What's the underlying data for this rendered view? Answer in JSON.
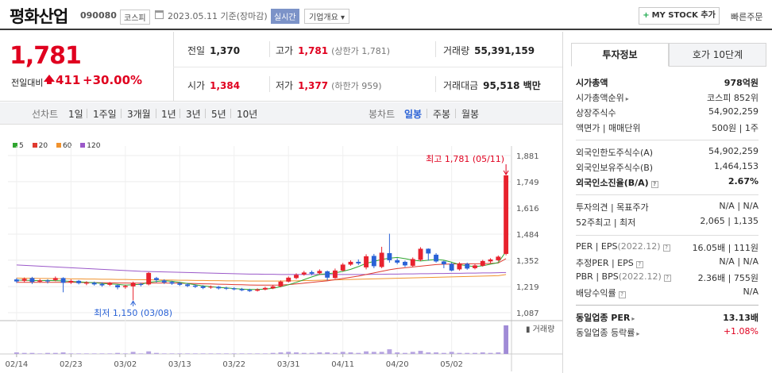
{
  "header": {
    "name": "평화산업",
    "code": "090080",
    "market": "코스피",
    "date": "2023.05.11 기준(장마감)",
    "realtime": "실시간",
    "overview": "기업개요",
    "overview_arrow": "▾",
    "mystock_plus": "+",
    "mystock": "MY STOCK 추가",
    "quick_order": "빠른주문"
  },
  "summary": {
    "price": "1,781",
    "prev_label": "전일대비",
    "change": "411",
    "change_pct": "+30.00%",
    "prev_close_label": "전일",
    "prev_close": "1,370",
    "high_label": "고가",
    "high": "1,781",
    "high_sub": "(상한가 1,781)",
    "volume_label": "거래량",
    "volume": "55,391,159",
    "open_label": "시가",
    "open": "1,384",
    "low_label": "저가",
    "low": "1,377",
    "low_sub": "(하한가 959)",
    "amount_label": "거래대금",
    "amount": "95,518 백만"
  },
  "toolbar": {
    "chart_type_label": "선차트",
    "periods": [
      "1일",
      "1주일",
      "3개월",
      "1년",
      "3년",
      "5년",
      "10년"
    ],
    "candle_label": "봉차트",
    "candles": [
      "일봉",
      "주봉",
      "월봉"
    ],
    "selected_candle": "일봉"
  },
  "legend": [
    {
      "label": "5",
      "color": "#2fa52f"
    },
    {
      "label": "20",
      "color": "#e03a2f"
    },
    {
      "label": "60",
      "color": "#f0922e"
    },
    {
      "label": "120",
      "color": "#9b59c9"
    }
  ],
  "chart_data": {
    "type": "candlestick",
    "y_ticks": [
      "1,881",
      "1,749",
      "1,616",
      "1,484",
      "1,352",
      "1,219",
      "1,087"
    ],
    "ylim": [
      1087,
      1881
    ],
    "x_ticks": [
      "02/14",
      "02/23",
      "03/02",
      "03/13",
      "03/22",
      "03/31",
      "04/11",
      "04/20",
      "05/02"
    ],
    "high_annotation": "최고 1,781 (05/11)",
    "low_annotation": "최저 1,150 (03/08)",
    "volume_label": "거래량",
    "candles": [
      {
        "o": 1255,
        "c": 1245,
        "h": 1262,
        "l": 1238
      },
      {
        "o": 1248,
        "c": 1258,
        "h": 1265,
        "l": 1240
      },
      {
        "o": 1262,
        "c": 1242,
        "h": 1268,
        "l": 1232
      },
      {
        "o": 1244,
        "c": 1250,
        "h": 1257,
        "l": 1238
      },
      {
        "o": 1250,
        "c": 1245,
        "h": 1256,
        "l": 1235
      },
      {
        "o": 1252,
        "c": 1262,
        "h": 1270,
        "l": 1246
      },
      {
        "o": 1262,
        "c": 1238,
        "h": 1266,
        "l": 1190
      },
      {
        "o": 1240,
        "c": 1248,
        "h": 1255,
        "l": 1232
      },
      {
        "o": 1248,
        "c": 1236,
        "h": 1252,
        "l": 1230
      },
      {
        "o": 1234,
        "c": 1240,
        "h": 1246,
        "l": 1226
      },
      {
        "o": 1238,
        "c": 1230,
        "h": 1244,
        "l": 1224
      },
      {
        "o": 1232,
        "c": 1225,
        "h": 1240,
        "l": 1218
      },
      {
        "o": 1228,
        "c": 1236,
        "h": 1242,
        "l": 1222
      },
      {
        "o": 1226,
        "c": 1215,
        "h": 1230,
        "l": 1205
      },
      {
        "o": 1216,
        "c": 1222,
        "h": 1228,
        "l": 1208
      },
      {
        "o": 1220,
        "c": 1238,
        "h": 1244,
        "l": 1150
      },
      {
        "o": 1232,
        "c": 1227,
        "h": 1238,
        "l": 1220
      },
      {
        "o": 1230,
        "c": 1288,
        "h": 1292,
        "l": 1225
      },
      {
        "o": 1262,
        "c": 1252,
        "h": 1268,
        "l": 1240
      },
      {
        "o": 1250,
        "c": 1240,
        "h": 1256,
        "l": 1232
      },
      {
        "o": 1242,
        "c": 1234,
        "h": 1248,
        "l": 1228
      },
      {
        "o": 1236,
        "c": 1228,
        "h": 1242,
        "l": 1222
      },
      {
        "o": 1230,
        "c": 1222,
        "h": 1236,
        "l": 1216
      },
      {
        "o": 1224,
        "c": 1218,
        "h": 1230,
        "l": 1212
      },
      {
        "o": 1220,
        "c": 1212,
        "h": 1226,
        "l": 1206
      },
      {
        "o": 1214,
        "c": 1218,
        "h": 1224,
        "l": 1208
      },
      {
        "o": 1218,
        "c": 1210,
        "h": 1222,
        "l": 1204
      },
      {
        "o": 1212,
        "c": 1208,
        "h": 1218,
        "l": 1202
      },
      {
        "o": 1210,
        "c": 1205,
        "h": 1216,
        "l": 1200
      },
      {
        "o": 1206,
        "c": 1200,
        "h": 1212,
        "l": 1196
      },
      {
        "o": 1202,
        "c": 1196,
        "h": 1208,
        "l": 1192
      },
      {
        "o": 1198,
        "c": 1204,
        "h": 1210,
        "l": 1194
      },
      {
        "o": 1204,
        "c": 1212,
        "h": 1218,
        "l": 1200
      },
      {
        "o": 1210,
        "c": 1220,
        "h": 1226,
        "l": 1206
      },
      {
        "o": 1220,
        "c": 1244,
        "h": 1250,
        "l": 1216
      },
      {
        "o": 1244,
        "c": 1264,
        "h": 1270,
        "l": 1240
      },
      {
        "o": 1262,
        "c": 1278,
        "h": 1286,
        "l": 1256
      },
      {
        "o": 1280,
        "c": 1290,
        "h": 1298,
        "l": 1274
      },
      {
        "o": 1292,
        "c": 1284,
        "h": 1300,
        "l": 1276
      },
      {
        "o": 1286,
        "c": 1298,
        "h": 1306,
        "l": 1280
      },
      {
        "o": 1296,
        "c": 1264,
        "h": 1300,
        "l": 1250
      },
      {
        "o": 1262,
        "c": 1300,
        "h": 1310,
        "l": 1258
      },
      {
        "o": 1300,
        "c": 1330,
        "h": 1338,
        "l": 1295
      },
      {
        "o": 1330,
        "c": 1344,
        "h": 1352,
        "l": 1324
      },
      {
        "o": 1344,
        "c": 1336,
        "h": 1356,
        "l": 1328
      },
      {
        "o": 1316,
        "c": 1372,
        "h": 1382,
        "l": 1306
      },
      {
        "o": 1374,
        "c": 1322,
        "h": 1384,
        "l": 1312
      },
      {
        "o": 1318,
        "c": 1390,
        "h": 1420,
        "l": 1312
      },
      {
        "o": 1388,
        "c": 1352,
        "h": 1486,
        "l": 1340
      },
      {
        "o": 1352,
        "c": 1340,
        "h": 1362,
        "l": 1332
      },
      {
        "o": 1344,
        "c": 1326,
        "h": 1350,
        "l": 1318
      },
      {
        "o": 1324,
        "c": 1358,
        "h": 1366,
        "l": 1318
      },
      {
        "o": 1354,
        "c": 1410,
        "h": 1418,
        "l": 1348
      },
      {
        "o": 1410,
        "c": 1386,
        "h": 1412,
        "l": 1350
      },
      {
        "o": 1380,
        "c": 1346,
        "h": 1388,
        "l": 1340
      },
      {
        "o": 1346,
        "c": 1332,
        "h": 1350,
        "l": 1312
      },
      {
        "o": 1334,
        "c": 1300,
        "h": 1340,
        "l": 1296
      },
      {
        "o": 1306,
        "c": 1336,
        "h": 1342,
        "l": 1300
      },
      {
        "o": 1334,
        "c": 1310,
        "h": 1340,
        "l": 1304
      },
      {
        "o": 1312,
        "c": 1326,
        "h": 1332,
        "l": 1306
      },
      {
        "o": 1324,
        "c": 1348,
        "h": 1354,
        "l": 1320
      },
      {
        "o": 1346,
        "c": 1356,
        "h": 1362,
        "l": 1338
      },
      {
        "o": 1352,
        "c": 1370,
        "h": 1376,
        "l": 1346
      },
      {
        "o": 1384,
        "c": 1781,
        "h": 1781,
        "l": 1377
      }
    ],
    "ma5": [
      1252,
      1251,
      1250,
      1249,
      1250,
      1249,
      1248,
      1245,
      1243,
      1240,
      1238,
      1235,
      1232,
      1230,
      1226,
      1228,
      1230,
      1240,
      1245,
      1248,
      1246,
      1240,
      1234,
      1228,
      1222,
      1218,
      1214,
      1212,
      1209,
      1206,
      1204,
      1204,
      1206,
      1210,
      1218,
      1228,
      1240,
      1254,
      1268,
      1280,
      1284,
      1288,
      1296,
      1306,
      1320,
      1336,
      1346,
      1356,
      1362,
      1366,
      1360,
      1352,
      1348,
      1352,
      1356,
      1352,
      1342,
      1330,
      1324,
      1320,
      1324,
      1332,
      1340,
      1396
    ],
    "ma20": [
      1240,
      1240,
      1240,
      1240,
      1240,
      1240,
      1240,
      1240,
      1240,
      1239,
      1239,
      1238,
      1238,
      1237,
      1237,
      1236,
      1236,
      1236,
      1237,
      1237,
      1236,
      1236,
      1235,
      1234,
      1233,
      1232,
      1231,
      1230,
      1229,
      1228,
      1227,
      1226,
      1226,
      1226,
      1227,
      1229,
      1232,
      1236,
      1240,
      1244,
      1248,
      1254,
      1260,
      1266,
      1272,
      1280,
      1288,
      1296,
      1304,
      1310,
      1314,
      1318,
      1322,
      1326,
      1330,
      1332,
      1333,
      1334,
      1334,
      1334,
      1335,
      1336,
      1338,
      1360
    ],
    "ma60": [
      1262,
      1261,
      1261,
      1260,
      1260,
      1259,
      1259,
      1258,
      1258,
      1257,
      1257,
      1256,
      1256,
      1255,
      1255,
      1254,
      1254,
      1253,
      1253,
      1252,
      1252,
      1251,
      1251,
      1250,
      1250,
      1249,
      1249,
      1248,
      1248,
      1248,
      1247,
      1247,
      1247,
      1247,
      1247,
      1248,
      1248,
      1249,
      1250,
      1251,
      1252,
      1253,
      1254,
      1255,
      1256,
      1257,
      1258,
      1259,
      1260,
      1261,
      1262,
      1263,
      1264,
      1265,
      1266,
      1267,
      1268,
      1269,
      1270,
      1271,
      1272,
      1273,
      1274,
      1280
    ],
    "ma120": [
      1328,
      1326,
      1324,
      1322,
      1320,
      1318,
      1316,
      1314,
      1312,
      1310,
      1308,
      1306,
      1304,
      1302,
      1300,
      1298,
      1296,
      1295,
      1294,
      1293,
      1292,
      1291,
      1290,
      1289,
      1288,
      1287,
      1286,
      1285,
      1284,
      1283,
      1282,
      1282,
      1281,
      1281,
      1280,
      1280,
      1280,
      1280,
      1280,
      1280,
      1280,
      1280,
      1280,
      1280,
      1280,
      1280,
      1281,
      1281,
      1282,
      1282,
      1283,
      1283,
      1284,
      1284,
      1285,
      1285,
      1286,
      1286,
      1287,
      1287,
      1288,
      1288,
      1289,
      1290
    ],
    "volume": [
      3,
      2,
      2,
      1,
      2,
      2,
      3,
      1,
      1,
      1,
      1,
      1,
      1,
      2,
      1,
      4,
      1,
      5,
      2,
      1,
      1,
      1,
      1,
      1,
      1,
      1,
      1,
      1,
      1,
      1,
      1,
      1,
      1,
      2,
      3,
      4,
      3,
      2,
      2,
      3,
      3,
      2,
      4,
      3,
      2,
      5,
      4,
      4,
      9,
      3,
      2,
      4,
      6,
      3,
      3,
      2,
      4,
      2,
      2,
      2,
      3,
      2,
      3,
      55
    ]
  },
  "panel": {
    "tab_invest": "투자정보",
    "tab_orderbook": "호가 10단계",
    "market_cap_label": "시가총액",
    "market_cap": "978억원",
    "cap_rank_label": "시가총액순위",
    "cap_rank": "코스피 852위",
    "listed_shares_label": "상장주식수",
    "listed_shares": "54,902,259",
    "par_label": "액면가 | 매매단위",
    "par": "500원 | 1주",
    "foreign_limit_label": "외국인한도주식수(A)",
    "foreign_limit": "54,902,259",
    "foreign_hold_label": "외국인보유주식수(B)",
    "foreign_hold": "1,464,153",
    "foreign_ratio_label": "외국인소진율(B/A)",
    "foreign_ratio": "2.67%",
    "opinion_label": "투자의견 | 목표주가",
    "opinion": "N/A | N/A",
    "week52_label": "52주최고 | 최저",
    "week52": "2,065 | 1,135",
    "per_label": "PER | EPS",
    "per_year": "(2022.12)",
    "per": "16.05배 | 111원",
    "est_per_label": "추정PER | EPS",
    "est_per": "N/A | N/A",
    "pbr_label": "PBR | BPS",
    "pbr_year": "(2022.12)",
    "pbr": "2.36배 | 755원",
    "div_label": "배당수익률",
    "div": "N/A",
    "ind_per_label": "동일업종 PER",
    "ind_per": "13.13배",
    "ind_chg_label": "동일업종 등락률",
    "ind_chg": "+1.08%"
  }
}
